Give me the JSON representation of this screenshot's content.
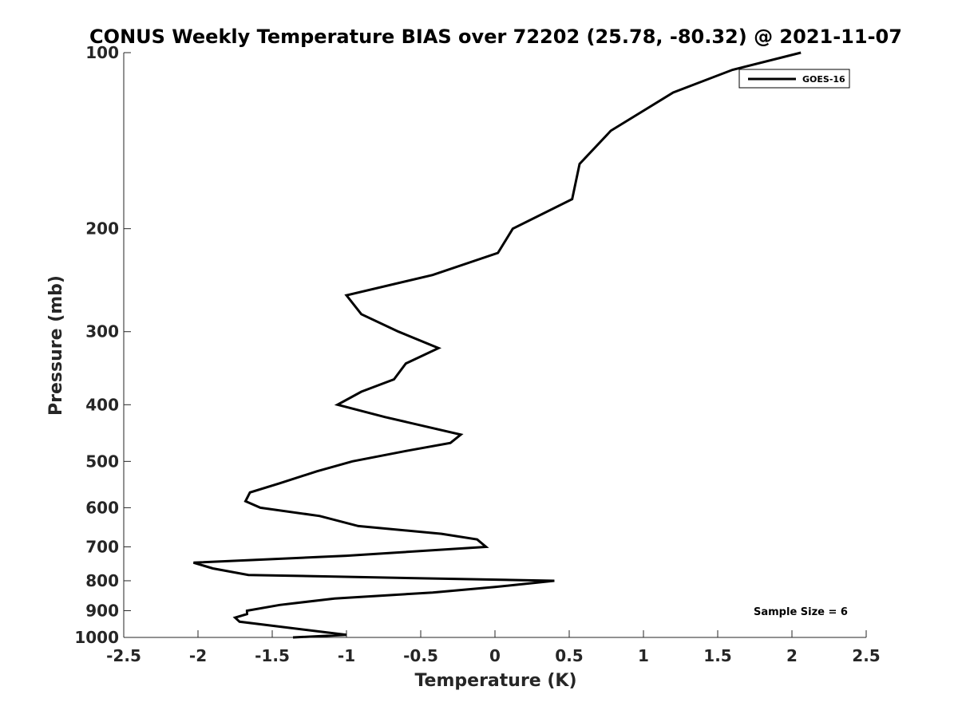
{
  "chart_data": {
    "type": "line",
    "title": "CONUS Weekly Temperature BIAS over 72202 (25.78, -80.32) @ 2021-11-07",
    "xlabel": "Temperature (K)",
    "ylabel": "Pressure (mb)",
    "xlim": [
      -2.5,
      2.5
    ],
    "ylim": [
      1000,
      100
    ],
    "y_scale": "log",
    "y_reversed": true,
    "x_ticks": [
      "-2.5",
      "-2",
      "-1.5",
      "-1",
      "-0.5",
      "0",
      "0.5",
      "1",
      "1.5",
      "2",
      "2.5"
    ],
    "y_ticks": [
      "100",
      "200",
      "300",
      "400",
      "500",
      "600",
      "700",
      "800",
      "900",
      "1000"
    ],
    "grid": false,
    "legend_position": "top-right",
    "annotation": "Sample Size = 6",
    "series": [
      {
        "name": "GOES-16",
        "color": "#000000",
        "points": [
          {
            "x": 2.06,
            "y": 100
          },
          {
            "x": 1.6,
            "y": 107
          },
          {
            "x": 1.2,
            "y": 117
          },
          {
            "x": 0.78,
            "y": 136
          },
          {
            "x": 0.57,
            "y": 155
          },
          {
            "x": 0.52,
            "y": 178
          },
          {
            "x": 0.12,
            "y": 200
          },
          {
            "x": 0.02,
            "y": 220
          },
          {
            "x": -0.42,
            "y": 240
          },
          {
            "x": -1.0,
            "y": 260
          },
          {
            "x": -0.9,
            "y": 280
          },
          {
            "x": -0.65,
            "y": 300
          },
          {
            "x": -0.38,
            "y": 320
          },
          {
            "x": -0.6,
            "y": 340
          },
          {
            "x": -0.68,
            "y": 362
          },
          {
            "x": -0.9,
            "y": 380
          },
          {
            "x": -1.06,
            "y": 400
          },
          {
            "x": -0.74,
            "y": 420
          },
          {
            "x": -0.23,
            "y": 450
          },
          {
            "x": -0.3,
            "y": 465
          },
          {
            "x": -0.6,
            "y": 480
          },
          {
            "x": -0.96,
            "y": 500
          },
          {
            "x": -1.2,
            "y": 520
          },
          {
            "x": -1.45,
            "y": 545
          },
          {
            "x": -1.65,
            "y": 565
          },
          {
            "x": -1.68,
            "y": 585
          },
          {
            "x": -1.58,
            "y": 600
          },
          {
            "x": -1.18,
            "y": 620
          },
          {
            "x": -0.92,
            "y": 645
          },
          {
            "x": -0.36,
            "y": 665
          },
          {
            "x": -0.12,
            "y": 680
          },
          {
            "x": -0.06,
            "y": 700
          },
          {
            "x": -1.0,
            "y": 725
          },
          {
            "x": -2.03,
            "y": 745
          },
          {
            "x": -1.9,
            "y": 762
          },
          {
            "x": -1.66,
            "y": 782
          },
          {
            "x": 0.4,
            "y": 800
          },
          {
            "x": 0.0,
            "y": 820
          },
          {
            "x": -0.42,
            "y": 838
          },
          {
            "x": -1.08,
            "y": 858
          },
          {
            "x": -1.45,
            "y": 880
          },
          {
            "x": -1.67,
            "y": 900
          },
          {
            "x": -1.67,
            "y": 912
          },
          {
            "x": -1.75,
            "y": 925
          },
          {
            "x": -1.72,
            "y": 940
          },
          {
            "x": -1.0,
            "y": 990
          },
          {
            "x": -1.36,
            "y": 1000
          }
        ]
      }
    ]
  }
}
